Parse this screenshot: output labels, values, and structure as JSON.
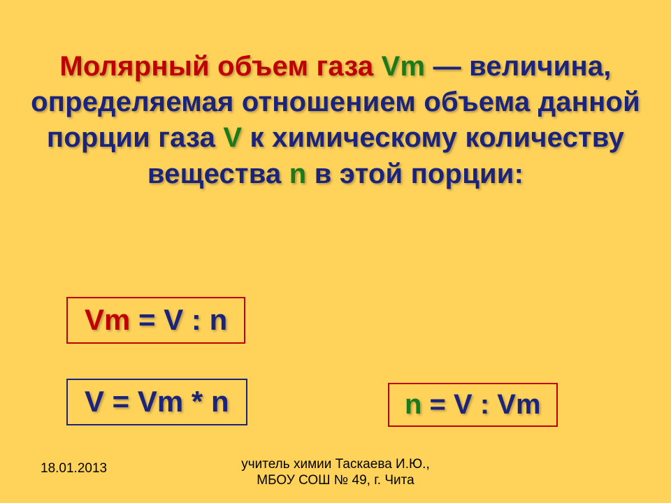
{
  "background_color": "#ffd35a",
  "paragraph": {
    "parts": [
      {
        "text": "Молярный объем газа ",
        "color": "red"
      },
      {
        "text": "Vm",
        "color": "green"
      },
      {
        "text": " — величина, определяемая отношением объема данной порции газа ",
        "color": "navy"
      },
      {
        "text": "V",
        "color": "green"
      },
      {
        "text": " к химическому количеству вещества ",
        "color": "navy"
      },
      {
        "text": "n",
        "color": "green"
      },
      {
        "text": " в этой порции:",
        "color": "navy"
      }
    ]
  },
  "formulas": {
    "f1": [
      {
        "text": "Vm",
        "color": "red"
      },
      {
        "text": " = ",
        "color": "navy"
      },
      {
        "text": "V",
        "color": "navy"
      },
      {
        "text": " : ",
        "color": "navy"
      },
      {
        "text": "n",
        "color": "navy"
      }
    ],
    "f2": [
      {
        "text": "V",
        "color": "navy"
      },
      {
        "text": " = ",
        "color": "navy"
      },
      {
        "text": "Vm",
        "color": "navy"
      },
      {
        "text": " * ",
        "color": "navy"
      },
      {
        "text": "n",
        "color": "navy"
      }
    ],
    "f3": [
      {
        "text": "n",
        "color": "green"
      },
      {
        "text": " = ",
        "color": "navy"
      },
      {
        "text": "V",
        "color": "navy"
      },
      {
        "text": " : ",
        "color": "navy"
      },
      {
        "text": "Vm",
        "color": "navy"
      }
    ]
  },
  "footer": {
    "date": "18.01.2013",
    "author_line1": "учитель химии Таскаева И.Ю.,",
    "author_line2": "МБОУ СОШ № 49, г. Чита"
  }
}
